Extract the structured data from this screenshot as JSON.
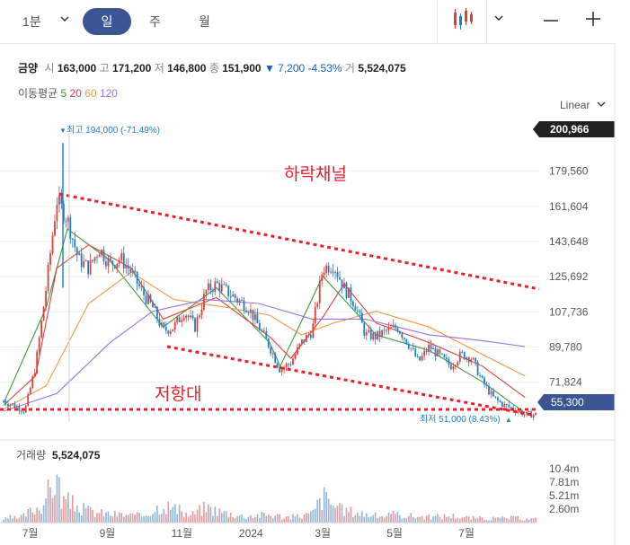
{
  "toolbar": {
    "period_select": "1분",
    "tabs": [
      "일",
      "주",
      "월"
    ],
    "active_tab": "일",
    "chart_type_icon": "candlestick-icon"
  },
  "quote": {
    "name": "금양",
    "open_label": "시",
    "open": "163,000",
    "high_label": "고",
    "high": "171,200",
    "low_label": "저",
    "low": "146,800",
    "close_label": "종",
    "close": "151,900",
    "change": "7,200",
    "change_pct": "-4.53%",
    "volume_label": "거",
    "volume": "5,524,075"
  },
  "moving_average": {
    "label": "이동평균",
    "periods": [
      "5",
      "20",
      "60",
      "120"
    ],
    "colors": [
      "#3c9a3c",
      "#e0403c",
      "#ee9a45",
      "#9c6fe0"
    ]
  },
  "scale_label": "Linear",
  "annotations": {
    "channel_label": "하락채널",
    "support_label": "저항대"
  },
  "price_panel": {
    "max_marker": "최고 194,000 (-71.49%)",
    "min_marker": "최저 51,000 (8.43%)",
    "top_price_tag": "200,966",
    "current_price_tag": "55,300"
  },
  "volume_panel": {
    "label": "거래량",
    "value": "5,524,075",
    "ticks": [
      "10.4m",
      "7.81m",
      "5.21m",
      "2.60m"
    ]
  },
  "colors": {
    "up": "#e0403c",
    "down": "#1f7fc4",
    "pill": "#3b5493",
    "trend_line": "#e8202a"
  },
  "chart_data": {
    "type": "candlestick",
    "y_ticks": [
      179560,
      161604,
      143648,
      125692,
      107736,
      89780,
      71824
    ],
    "ylim": [
      51000,
      200966
    ],
    "x_labels": [
      "7월",
      "9월",
      "11월",
      "2024",
      "3월",
      "5월",
      "7월"
    ],
    "close_path": [
      [
        0,
        62000
      ],
      [
        0.02,
        60000
      ],
      [
        0.04,
        57000
      ],
      [
        0.06,
        80000
      ],
      [
        0.08,
        120000
      ],
      [
        0.1,
        165000
      ],
      [
        0.12,
        155000
      ],
      [
        0.14,
        135000
      ],
      [
        0.16,
        130000
      ],
      [
        0.18,
        140000
      ],
      [
        0.2,
        132000
      ],
      [
        0.22,
        135000
      ],
      [
        0.24,
        128000
      ],
      [
        0.26,
        118000
      ],
      [
        0.28,
        110000
      ],
      [
        0.3,
        98000
      ],
      [
        0.32,
        100000
      ],
      [
        0.34,
        108000
      ],
      [
        0.36,
        100000
      ],
      [
        0.38,
        118000
      ],
      [
        0.4,
        122000
      ],
      [
        0.42,
        118000
      ],
      [
        0.44,
        114000
      ],
      [
        0.46,
        110000
      ],
      [
        0.48,
        100000
      ],
      [
        0.5,
        90000
      ],
      [
        0.52,
        78000
      ],
      [
        0.54,
        82000
      ],
      [
        0.56,
        92000
      ],
      [
        0.58,
        98000
      ],
      [
        0.6,
        130000
      ],
      [
        0.62,
        132000
      ],
      [
        0.64,
        120000
      ],
      [
        0.66,
        112000
      ],
      [
        0.68,
        96000
      ],
      [
        0.7,
        95000
      ],
      [
        0.72,
        98000
      ],
      [
        0.74,
        100000
      ],
      [
        0.76,
        92000
      ],
      [
        0.78,
        82000
      ],
      [
        0.8,
        90000
      ],
      [
        0.82,
        85000
      ],
      [
        0.84,
        80000
      ],
      [
        0.86,
        86000
      ],
      [
        0.88,
        84000
      ],
      [
        0.9,
        72000
      ],
      [
        0.92,
        64000
      ],
      [
        0.94,
        60000
      ],
      [
        0.96,
        58000
      ],
      [
        0.98,
        55300
      ]
    ],
    "ma": [
      {
        "name": "5",
        "points": [
          [
            0,
            61000
          ],
          [
            0.08,
            110000
          ],
          [
            0.12,
            150000
          ],
          [
            0.2,
            134000
          ],
          [
            0.3,
            100000
          ],
          [
            0.4,
            120000
          ],
          [
            0.5,
            92000
          ],
          [
            0.52,
            80000
          ],
          [
            0.6,
            126000
          ],
          [
            0.7,
            96000
          ],
          [
            0.8,
            88000
          ],
          [
            0.9,
            72000
          ],
          [
            0.98,
            56000
          ]
        ]
      },
      {
        "name": "20",
        "points": [
          [
            0,
            60000
          ],
          [
            0.06,
            75000
          ],
          [
            0.1,
            130000
          ],
          [
            0.16,
            142000
          ],
          [
            0.24,
            130000
          ],
          [
            0.3,
            104000
          ],
          [
            0.4,
            115000
          ],
          [
            0.5,
            95000
          ],
          [
            0.54,
            84000
          ],
          [
            0.6,
            105000
          ],
          [
            0.64,
            122000
          ],
          [
            0.7,
            102000
          ],
          [
            0.8,
            92000
          ],
          [
            0.9,
            80000
          ],
          [
            0.98,
            64000
          ]
        ]
      },
      {
        "name": "60",
        "points": [
          [
            0,
            58000
          ],
          [
            0.08,
            70000
          ],
          [
            0.16,
            112000
          ],
          [
            0.24,
            128000
          ],
          [
            0.32,
            114000
          ],
          [
            0.42,
            110000
          ],
          [
            0.5,
            106000
          ],
          [
            0.56,
            96000
          ],
          [
            0.62,
            102000
          ],
          [
            0.7,
            108000
          ],
          [
            0.8,
            100000
          ],
          [
            0.9,
            86000
          ],
          [
            0.98,
            75000
          ]
        ]
      },
      {
        "name": "120",
        "points": [
          [
            0,
            57000
          ],
          [
            0.1,
            66000
          ],
          [
            0.2,
            92000
          ],
          [
            0.28,
            108000
          ],
          [
            0.38,
            114000
          ],
          [
            0.48,
            112000
          ],
          [
            0.58,
            104000
          ],
          [
            0.68,
            104000
          ],
          [
            0.8,
            96000
          ],
          [
            0.9,
            93000
          ],
          [
            0.98,
            90000
          ]
        ]
      }
    ],
    "volume_ticks": [
      10400000,
      7810000,
      5210000,
      2600000
    ],
    "volume": [
      [
        0.01,
        1200000
      ],
      [
        0.03,
        900000
      ],
      [
        0.05,
        2600000
      ],
      [
        0.07,
        3800000
      ],
      [
        0.09,
        8000000
      ],
      [
        0.1,
        10400000
      ],
      [
        0.11,
        5200000
      ],
      [
        0.13,
        4200000
      ],
      [
        0.15,
        3000000
      ],
      [
        0.18,
        2200000
      ],
      [
        0.22,
        1800000
      ],
      [
        0.26,
        1500000
      ],
      [
        0.3,
        4200000
      ],
      [
        0.32,
        3200000
      ],
      [
        0.35,
        1600000
      ],
      [
        0.38,
        3500000
      ],
      [
        0.41,
        2400000
      ],
      [
        0.45,
        1500000
      ],
      [
        0.5,
        1800000
      ],
      [
        0.54,
        1200000
      ],
      [
        0.58,
        2000000
      ],
      [
        0.6,
        6000000
      ],
      [
        0.61,
        5200000
      ],
      [
        0.63,
        3000000
      ],
      [
        0.66,
        2400000
      ],
      [
        0.7,
        1500000
      ],
      [
        0.74,
        1800000
      ],
      [
        0.8,
        1200000
      ],
      [
        0.84,
        1600000
      ],
      [
        0.88,
        1000000
      ],
      [
        0.92,
        900000
      ],
      [
        0.96,
        1100000
      ],
      [
        0.98,
        800000
      ]
    ]
  }
}
